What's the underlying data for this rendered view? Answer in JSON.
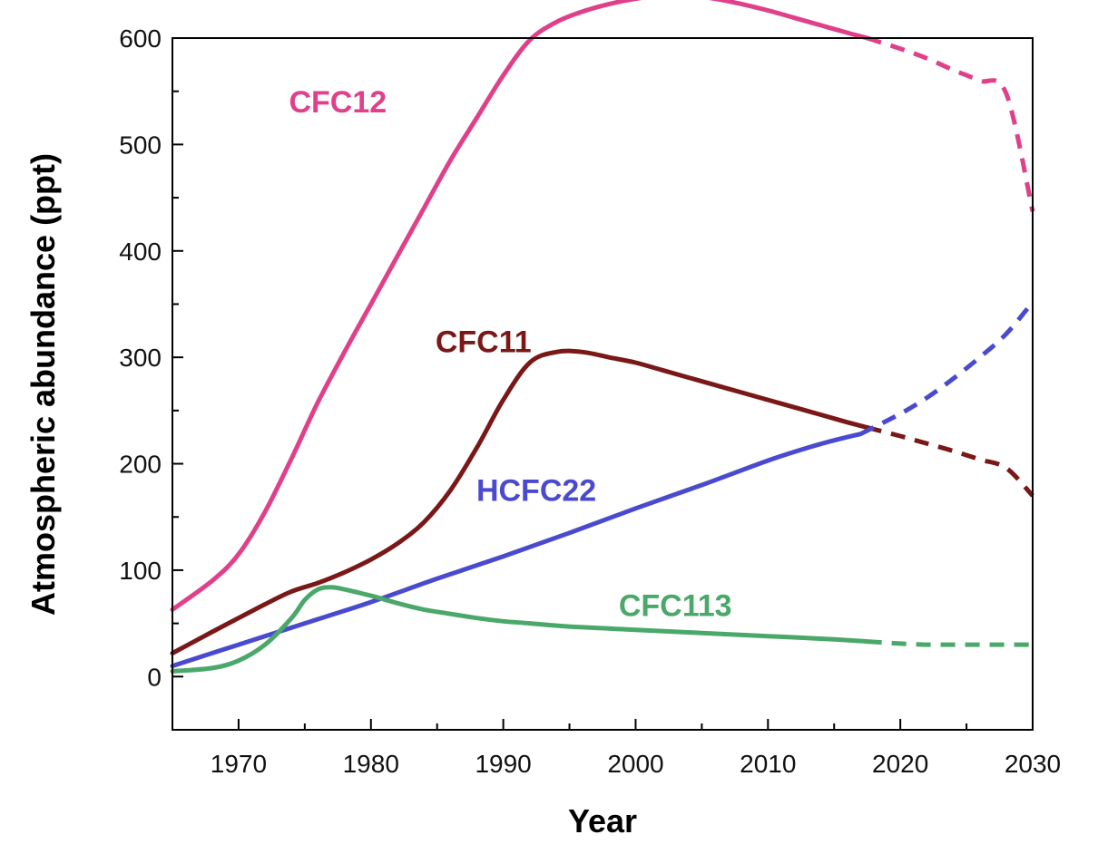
{
  "chart_data": {
    "type": "line",
    "title": "",
    "xlabel": "Year",
    "ylabel": "Atmospheric abundance (ppt)",
    "xlim": [
      1965,
      2030
    ],
    "ylim": [
      -50,
      600
    ],
    "x_ticks": [
      "1970",
      "1980",
      "1990",
      "2000",
      "2010",
      "2020",
      "2030"
    ],
    "y_ticks": [
      "0",
      "100",
      "200",
      "300",
      "400",
      "500",
      "600"
    ],
    "grid": false,
    "legend": "none",
    "series": [
      {
        "name": "CFC12",
        "color": "#e0408a",
        "observed": [
          [
            1965,
            63
          ],
          [
            1968,
            90
          ],
          [
            1970,
            115
          ],
          [
            1972,
            155
          ],
          [
            1974,
            205
          ],
          [
            1976,
            258
          ],
          [
            1978,
            305
          ],
          [
            1980,
            350
          ],
          [
            1982,
            395
          ],
          [
            1984,
            440
          ],
          [
            1986,
            485
          ],
          [
            1988,
            525
          ],
          [
            1990,
            565
          ],
          [
            1992,
            598
          ],
          [
            1994,
            615
          ],
          [
            1996,
            625
          ],
          [
            1998,
            632
          ],
          [
            2000,
            637
          ],
          [
            2002,
            640
          ],
          [
            2004,
            640
          ],
          [
            2006,
            637
          ],
          [
            2008,
            632
          ],
          [
            2010,
            626
          ],
          [
            2012,
            619
          ],
          [
            2014,
            612
          ],
          [
            2016,
            605
          ],
          [
            2017.5,
            600
          ]
        ],
        "projected": [
          [
            2017.5,
            600
          ],
          [
            2020,
            590
          ],
          [
            2022,
            581
          ],
          [
            2024,
            570
          ],
          [
            2026,
            560
          ],
          [
            2028,
            548
          ],
          [
            2030,
            437
          ]
        ]
      },
      {
        "name": "CFC11",
        "color": "#7a1818",
        "observed": [
          [
            1965,
            22
          ],
          [
            1968,
            42
          ],
          [
            1970,
            55
          ],
          [
            1972,
            68
          ],
          [
            1974,
            80
          ],
          [
            1976,
            88
          ],
          [
            1978,
            98
          ],
          [
            1980,
            110
          ],
          [
            1982,
            125
          ],
          [
            1984,
            145
          ],
          [
            1986,
            175
          ],
          [
            1988,
            215
          ],
          [
            1990,
            260
          ],
          [
            1992,
            295
          ],
          [
            1994,
            305
          ],
          [
            1996,
            305
          ],
          [
            1998,
            300
          ],
          [
            2000,
            295
          ],
          [
            2002,
            288
          ],
          [
            2004,
            281
          ],
          [
            2006,
            274
          ],
          [
            2008,
            267
          ],
          [
            2010,
            260
          ],
          [
            2012,
            253
          ],
          [
            2014,
            246
          ],
          [
            2016,
            239
          ],
          [
            2017.5,
            234
          ]
        ],
        "projected": [
          [
            2017.5,
            234
          ],
          [
            2020,
            226
          ],
          [
            2022,
            219
          ],
          [
            2024,
            212
          ],
          [
            2026,
            204
          ],
          [
            2028,
            196
          ],
          [
            2030,
            170
          ]
        ]
      },
      {
        "name": "HCFC22",
        "color": "#4a4ad0",
        "observed": [
          [
            1965,
            10
          ],
          [
            1970,
            30
          ],
          [
            1975,
            50
          ],
          [
            1980,
            70
          ],
          [
            1985,
            92
          ],
          [
            1990,
            113
          ],
          [
            1995,
            135
          ],
          [
            2000,
            158
          ],
          [
            2005,
            180
          ],
          [
            2010,
            203
          ],
          [
            2013,
            215
          ],
          [
            2015,
            222
          ],
          [
            2017,
            228
          ]
        ],
        "projected": [
          [
            2017,
            228
          ],
          [
            2020,
            247
          ],
          [
            2022,
            262
          ],
          [
            2024,
            280
          ],
          [
            2026,
            300
          ],
          [
            2028,
            322
          ],
          [
            2030,
            352
          ]
        ]
      },
      {
        "name": "CFC113",
        "color": "#4aa86a",
        "observed": [
          [
            1965,
            5
          ],
          [
            1968,
            8
          ],
          [
            1970,
            15
          ],
          [
            1972,
            30
          ],
          [
            1974,
            55
          ],
          [
            1975,
            72
          ],
          [
            1976,
            82
          ],
          [
            1977,
            84
          ],
          [
            1978,
            82
          ],
          [
            1980,
            76
          ],
          [
            1982,
            69
          ],
          [
            1984,
            63
          ],
          [
            1986,
            59
          ],
          [
            1988,
            55
          ],
          [
            1990,
            52
          ],
          [
            1992,
            50
          ],
          [
            1995,
            47
          ],
          [
            2000,
            44
          ],
          [
            2005,
            41
          ],
          [
            2010,
            38
          ],
          [
            2015,
            35
          ],
          [
            2017.5,
            33
          ]
        ],
        "projected": [
          [
            2017.5,
            33
          ],
          [
            2020,
            31
          ],
          [
            2022,
            30
          ],
          [
            2024,
            30
          ],
          [
            2026,
            30
          ],
          [
            2028,
            30
          ],
          [
            2030,
            30
          ]
        ]
      }
    ],
    "annotations": [
      {
        "text": "CFC12",
        "x": 1977.5,
        "y": 530,
        "color": "#e0408a"
      },
      {
        "text": "CFC11",
        "x": 1988.5,
        "y": 305,
        "color": "#7a1818"
      },
      {
        "text": "HCFC22",
        "x": 1992.5,
        "y": 165,
        "color": "#4a4ad0"
      },
      {
        "text": "CFC113",
        "x": 2003,
        "y": 57,
        "color": "#4aa86a"
      }
    ]
  }
}
